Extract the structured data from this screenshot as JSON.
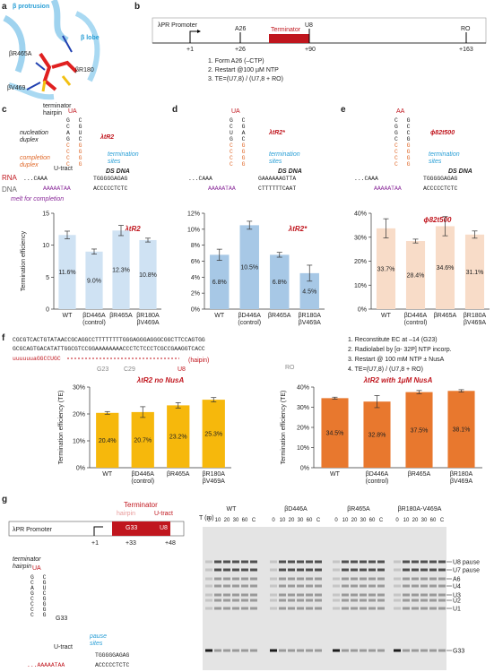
{
  "panel_a": {
    "letter": "a",
    "protrusion": "β protrusion",
    "lobe": "β lobe",
    "r465a": "βR465A",
    "r180": "βR180",
    "v469": "βV469",
    "hairpin": "terminator\nhairpin"
  },
  "panel_b": {
    "letter": "b",
    "promoter": "λPR Promoter",
    "a26": "A26",
    "u8": "U8",
    "ro": "RO",
    "p1": "+1",
    "p26": "+26",
    "p90": "+90",
    "p163": "+163",
    "terminator": "Terminator",
    "steps": [
      "1. Form A26 (–CTP)",
      "2. Restart @100 µM NTP",
      "3. TE=(U7,8) / (U7,8 + RO)"
    ]
  },
  "panel_c": {
    "letter": "c",
    "hairpin": "terminator\nhairpin",
    "loop": "UA",
    "stem": [
      "G C",
      "C G",
      "A U",
      "G C",
      "C G",
      "C G",
      "C G",
      "C G"
    ],
    "nucleation": "nucleation\nduplex",
    "completion": "completion\nduplex",
    "termination": "termination\nsites",
    "utract": "U-tract",
    "ds": "DS DNA",
    "rna": "RNA",
    "dna": "DNA",
    "melt": "melt for completion",
    "rna_seq": "...CAAA",
    "template": "AAAAATAA",
    "top": "TGGGGGAGAG",
    "bottom": "ACCCCCTCTC",
    "name": "λtR2"
  },
  "panel_d": {
    "letter": "d",
    "loop": "UA",
    "stem": [
      "G C",
      "C G",
      "U A",
      "G C",
      "C G",
      "C G",
      "C G",
      "C G"
    ],
    "termination": "termination\nsites",
    "ds": "DS DNA",
    "rna_seq": "...CAAA",
    "template": "AAAAATAA",
    "top": "GAAAAAAGTTA",
    "bottom": "CTTTTTTCAAT",
    "name": "λtR2*"
  },
  "panel_e": {
    "letter": "e",
    "loop": "AA",
    "stem": [
      "C G",
      "G C",
      "G C",
      "C G",
      "C G",
      "C G",
      "C G",
      "C G"
    ],
    "termination": "termination\nsites",
    "ds": "DS DNA",
    "rna_seq": "...CAAA",
    "template": "AAAAATAA",
    "top": "TGGGGGAGAG",
    "bottom": "ACCCCCTCTC",
    "name": "ϕ82t500"
  },
  "panel_f": {
    "letter": "f",
    "seq1": "CGCGTCACTGTATAACCGCAGGCCTTTTTTTTGGGAGGGAGGGCGGCTTCCAGTGG",
    "seq2": "GCGCAGTGACATATTGGCGTCCGGAAAAAAAACCCTCTCCCTCGCCGAAGGTCACC",
    "rna": "uuuuuuaGGCCUGC",
    "g23": "G23",
    "c29": "C29",
    "u8": "U8",
    "ro": "RO",
    "hairpin": "(haipin)",
    "steps": [
      "1. Reconstitute EC at –14 (G23)",
      "2. Radiolabel by [α- 32P] NTP incorp.",
      "3. Restart @ 100 mM NTP ± NusA",
      "4. TE=(U7,8) / (U7,8 + RO)"
    ]
  },
  "panel_g": {
    "letter": "g",
    "promoter": "λPR Promoter",
    "terminator": "Terminator",
    "hairpin": "hairpin",
    "utract": "U-tract",
    "g33": "G33",
    "u8": "U8",
    "p1": "+1",
    "p33": "+33",
    "p48": "+48",
    "hp_label": "terminator\nhairpin",
    "loop": "UA",
    "stem": [
      "G C",
      "C G",
      "A U",
      "G C",
      "C G",
      "C G",
      "C G",
      "C G"
    ],
    "pause": "pause\nsites",
    "top": "TGGGGGAGAG",
    "bottom": "ACCCCCTCTC",
    "template": "...AAAAATAA",
    "gel": {
      "time_label": "T (m)",
      "lanes": [
        "WT",
        "βD446A",
        "βR465A",
        "βR180A-V469A"
      ],
      "times": [
        "0",
        "10",
        "20",
        "30",
        "60",
        "C"
      ],
      "bands": [
        "U8 pause",
        "U7 pause",
        "A6",
        "U4",
        "U3",
        "U2",
        "U1",
        "G33"
      ]
    }
  },
  "chart_data": [
    {
      "type": "bar",
      "title": "λtR2",
      "ylabel": "Termination efficiency",
      "categories": [
        "WT",
        "βD446A\n(control)",
        "βR465A",
        "βR180A\nβV469A"
      ],
      "values": [
        11.6,
        9.0,
        12.3,
        10.8
      ],
      "value_labels": [
        "11.6%",
        "9.0%",
        "12.3%",
        "10.8%"
      ],
      "errors": [
        0.6,
        0.4,
        0.8,
        0.3
      ],
      "color": "#cfe2f3",
      "ylim": [
        0,
        15
      ],
      "yticks": [
        0,
        5,
        10,
        15
      ]
    },
    {
      "type": "bar",
      "title": "λtR2*",
      "ylabel": "",
      "categories": [
        "WT",
        "βD446A\n(control)",
        "βR465A",
        "βR180A\nβV469A"
      ],
      "values": [
        6.8,
        10.5,
        6.8,
        4.5
      ],
      "value_labels": [
        "6.8%",
        "10.5%",
        "6.8%",
        "4.5%"
      ],
      "errors": [
        0.7,
        0.5,
        0.3,
        1.0
      ],
      "color": "#a7c8e6",
      "ylim": [
        0,
        12
      ],
      "yticks": [
        {
          "value": 0,
          "label": "0%"
        },
        {
          "value": 2,
          "label": "2%"
        },
        {
          "value": 4,
          "label": "4%"
        },
        {
          "value": 6,
          "label": "6%"
        },
        {
          "value": 8,
          "label": "8%"
        },
        {
          "value": 10,
          "label": "10%"
        },
        {
          "value": 12,
          "label": "12%"
        }
      ]
    },
    {
      "type": "bar",
      "title": "ϕ82t500",
      "ylabel": "",
      "categories": [
        "WT",
        "βD446A\n(control)",
        "βR465A",
        "βR180A\nβV469A"
      ],
      "values": [
        33.7,
        28.4,
        34.6,
        31.1
      ],
      "value_labels": [
        "33.7%",
        "28.4%",
        "34.6%",
        "31.1%"
      ],
      "errors": [
        4,
        0.8,
        4,
        1.5
      ],
      "color": "#f8dcc8",
      "ylim": [
        0,
        40
      ],
      "yticks": [
        {
          "value": 0,
          "label": "0%"
        },
        {
          "value": 10,
          "label": "10%"
        },
        {
          "value": 20,
          "label": "20%"
        },
        {
          "value": 30,
          "label": "30%"
        },
        {
          "value": 40,
          "label": "40%"
        }
      ]
    },
    {
      "type": "bar",
      "title": "λtR2 no NusA",
      "ylabel": "Termination efficiency (TE)",
      "categories": [
        "WT",
        "βD446A\n(control)",
        "βR465A",
        "βR180A\nβV469A"
      ],
      "values": [
        20.4,
        20.7,
        23.2,
        25.3
      ],
      "value_labels": [
        "20.4%",
        "20.7%",
        "23.2%",
        "25.3%"
      ],
      "errors": [
        0.5,
        2,
        1,
        0.8
      ],
      "color": "#f6b80c",
      "ylim": [
        0,
        30
      ],
      "yticks": [
        {
          "value": 0,
          "label": "0%"
        },
        {
          "value": 10,
          "label": "10%"
        },
        {
          "value": 20,
          "label": "20%"
        },
        {
          "value": 30,
          "label": "30%"
        }
      ]
    },
    {
      "type": "bar",
      "title": "λtR2 with 1μM NusA",
      "ylabel": "Termination efficiency (TE)",
      "categories": [
        "WT",
        "βD446A\n(control)",
        "βR465A",
        "βR180A\nβV469A"
      ],
      "values": [
        34.5,
        32.8,
        37.5,
        38.1
      ],
      "value_labels": [
        "34.5%",
        "32.8%",
        "37.5%",
        "38.1%"
      ],
      "errors": [
        0.5,
        3,
        0.8,
        0.6
      ],
      "color": "#e8782e",
      "ylim": [
        0,
        40
      ],
      "yticks": [
        {
          "value": 0,
          "label": "0%"
        },
        {
          "value": 10,
          "label": "10%"
        },
        {
          "value": 20,
          "label": "20%"
        },
        {
          "value": 30,
          "label": "30%"
        },
        {
          "value": 40,
          "label": "40%"
        }
      ]
    }
  ]
}
